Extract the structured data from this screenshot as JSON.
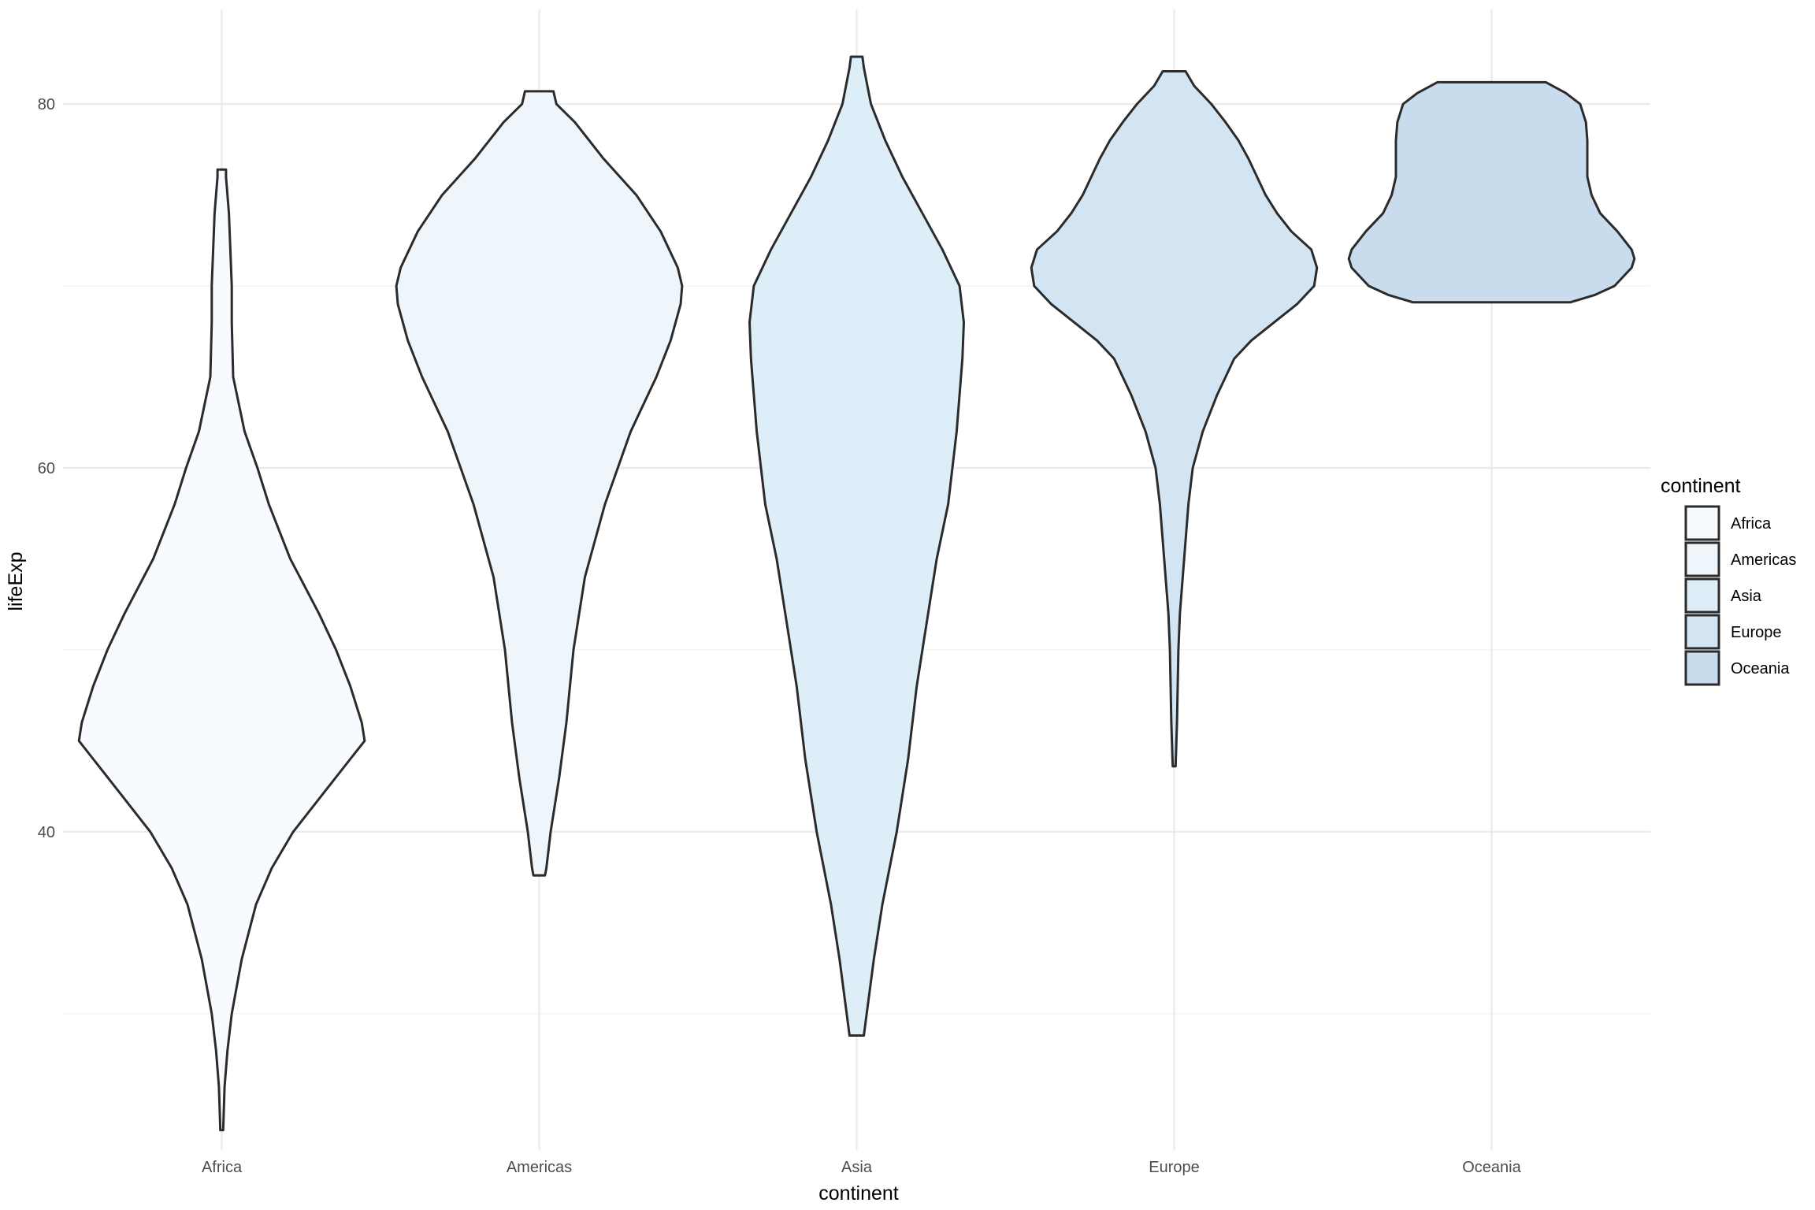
{
  "chart_data": {
    "type": "violin",
    "title": "",
    "xlabel": "continent",
    "ylabel": "lifeExp",
    "categories": [
      "Africa",
      "Americas",
      "Asia",
      "Europe",
      "Oceania"
    ],
    "ylim": [
      22.5,
      85.2
    ],
    "y_ticks": [
      40,
      60,
      80
    ],
    "grid": true,
    "legend": {
      "title": "continent",
      "position": "right",
      "entries": [
        "Africa",
        "Americas",
        "Asia",
        "Europe",
        "Oceania"
      ]
    },
    "colors": {
      "Africa": "#f7fbff",
      "Americas": "#eff6fb",
      "Asia": "#deeef8",
      "Europe": "#d3e5f2",
      "Oceania": "#c9dcee"
    },
    "series": [
      {
        "name": "Africa",
        "min": 23.6,
        "max": 76.4,
        "density_profile": [
          [
            23.6,
            0.01
          ],
          [
            26,
            0.02
          ],
          [
            28,
            0.04
          ],
          [
            30,
            0.07
          ],
          [
            33,
            0.14
          ],
          [
            36,
            0.24
          ],
          [
            38,
            0.35
          ],
          [
            40,
            0.5
          ],
          [
            42,
            0.7
          ],
          [
            44,
            0.9
          ],
          [
            45,
            1.0
          ],
          [
            46,
            0.98
          ],
          [
            48,
            0.9
          ],
          [
            50,
            0.8
          ],
          [
            52,
            0.68
          ],
          [
            55,
            0.48
          ],
          [
            58,
            0.33
          ],
          [
            60,
            0.25
          ],
          [
            62,
            0.16
          ],
          [
            65,
            0.08
          ],
          [
            68,
            0.07
          ],
          [
            70,
            0.07
          ],
          [
            72,
            0.06
          ],
          [
            74,
            0.05
          ],
          [
            76,
            0.03
          ],
          [
            76.4,
            0.03
          ]
        ]
      },
      {
        "name": "Americas",
        "min": 37.6,
        "max": 80.7,
        "density_profile": [
          [
            37.6,
            0.04
          ],
          [
            38,
            0.05
          ],
          [
            40,
            0.08
          ],
          [
            43,
            0.14
          ],
          [
            46,
            0.19
          ],
          [
            50,
            0.24
          ],
          [
            54,
            0.32
          ],
          [
            58,
            0.46
          ],
          [
            62,
            0.64
          ],
          [
            65,
            0.82
          ],
          [
            67,
            0.92
          ],
          [
            69,
            0.99
          ],
          [
            70,
            1.0
          ],
          [
            71,
            0.97
          ],
          [
            73,
            0.85
          ],
          [
            75,
            0.68
          ],
          [
            77,
            0.45
          ],
          [
            79,
            0.25
          ],
          [
            80,
            0.12
          ],
          [
            80.7,
            0.1
          ]
        ]
      },
      {
        "name": "Asia",
        "min": 28.8,
        "max": 82.6,
        "density_profile": [
          [
            28.8,
            0.05
          ],
          [
            30,
            0.07
          ],
          [
            33,
            0.12
          ],
          [
            36,
            0.18
          ],
          [
            40,
            0.28
          ],
          [
            44,
            0.36
          ],
          [
            48,
            0.42
          ],
          [
            52,
            0.5
          ],
          [
            55,
            0.56
          ],
          [
            58,
            0.64
          ],
          [
            62,
            0.7
          ],
          [
            66,
            0.74
          ],
          [
            68,
            0.75
          ],
          [
            70,
            0.72
          ],
          [
            72,
            0.6
          ],
          [
            74,
            0.46
          ],
          [
            76,
            0.32
          ],
          [
            78,
            0.2
          ],
          [
            80,
            0.1
          ],
          [
            82,
            0.05
          ],
          [
            82.6,
            0.04
          ]
        ]
      },
      {
        "name": "Europe",
        "min": 43.6,
        "max": 81.8,
        "density_profile": [
          [
            43.6,
            0.01
          ],
          [
            46,
            0.02
          ],
          [
            50,
            0.03
          ],
          [
            52,
            0.04
          ],
          [
            54,
            0.06
          ],
          [
            56,
            0.08
          ],
          [
            58,
            0.1
          ],
          [
            60,
            0.13
          ],
          [
            62,
            0.2
          ],
          [
            64,
            0.3
          ],
          [
            66,
            0.42
          ],
          [
            67,
            0.54
          ],
          [
            68,
            0.7
          ],
          [
            69,
            0.86
          ],
          [
            70,
            0.98
          ],
          [
            71,
            1.0
          ],
          [
            72,
            0.96
          ],
          [
            73,
            0.82
          ],
          [
            74,
            0.72
          ],
          [
            75,
            0.64
          ],
          [
            76,
            0.58
          ],
          [
            77,
            0.52
          ],
          [
            78,
            0.45
          ],
          [
            79,
            0.36
          ],
          [
            80,
            0.26
          ],
          [
            81,
            0.14
          ],
          [
            81.8,
            0.08
          ]
        ]
      },
      {
        "name": "Oceania",
        "min": 69.1,
        "max": 81.2,
        "density_profile": [
          [
            69.1,
            0.55
          ],
          [
            69.5,
            0.72
          ],
          [
            70,
            0.86
          ],
          [
            71,
            0.98
          ],
          [
            71.5,
            1.0
          ],
          [
            72,
            0.98
          ],
          [
            73,
            0.88
          ],
          [
            74,
            0.76
          ],
          [
            75,
            0.7
          ],
          [
            76,
            0.67
          ],
          [
            77,
            0.67
          ],
          [
            78,
            0.67
          ],
          [
            79,
            0.66
          ],
          [
            80,
            0.62
          ],
          [
            80.6,
            0.52
          ],
          [
            81.2,
            0.38
          ]
        ]
      }
    ]
  }
}
